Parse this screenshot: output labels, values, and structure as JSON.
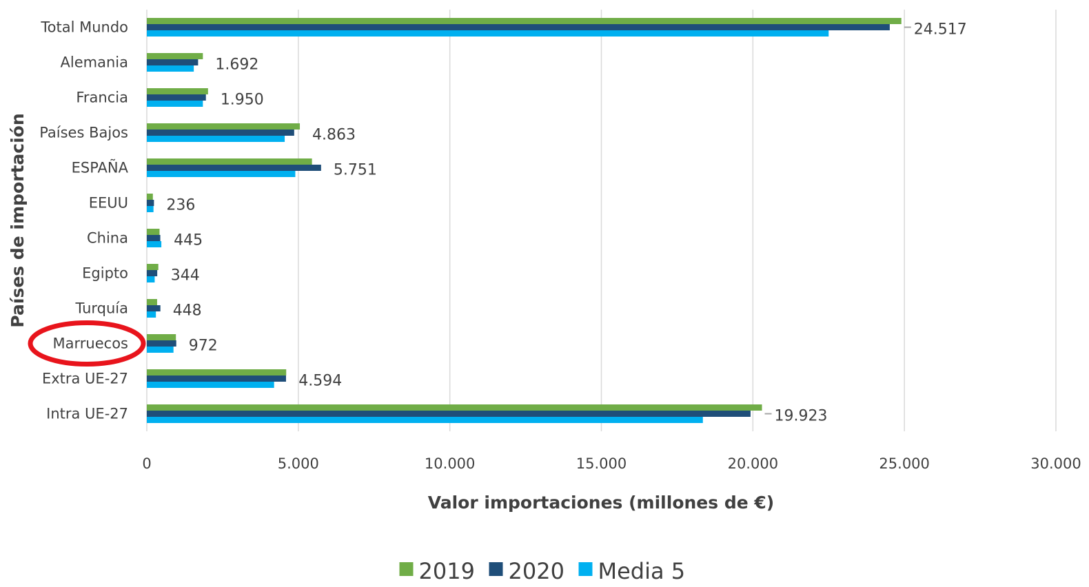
{
  "chart_data": {
    "type": "bar",
    "orientation": "horizontal",
    "categories": [
      "Total Mundo",
      "Alemania",
      "Francia",
      "Países Bajos",
      "ESPAÑA",
      "EEUU",
      "China",
      "Egipto",
      "Turquía",
      "Marruecos",
      "Extra UE-27",
      "Intra UE-27"
    ],
    "series": [
      {
        "name": "2019",
        "color": "#70ad47",
        "values": [
          24900,
          1850,
          2020,
          5050,
          5450,
          200,
          420,
          380,
          340,
          960,
          4600,
          20300
        ]
      },
      {
        "name": "2020",
        "color": "#1f4e79",
        "values": [
          24517,
          1692,
          1950,
          4863,
          5751,
          236,
          445,
          344,
          448,
          972,
          4594,
          19923
        ]
      },
      {
        "name": "Media 5",
        "color": "#00b0f0",
        "values": [
          22500,
          1550,
          1850,
          4550,
          4900,
          220,
          480,
          260,
          300,
          880,
          4200,
          18350
        ]
      }
    ],
    "data_labels": [
      "24.517",
      "1.692",
      "1.950",
      "4.863",
      "5.751",
      "236",
      "445",
      "344",
      "448",
      "972",
      "4.594",
      "19.923"
    ],
    "xlim": [
      0,
      30000
    ],
    "xticks": [
      "0",
      "5.000",
      "10.000",
      "15.000",
      "20.000",
      "25.000",
      "30.000"
    ],
    "xlabel": "Valor importaciones (millones de €)",
    "ylabel": "Países de importación",
    "grid": "vertical",
    "legend_position": "bottom",
    "highlight": {
      "category": "Marruecos",
      "shape": "ellipse",
      "color": "#e8141c"
    }
  }
}
